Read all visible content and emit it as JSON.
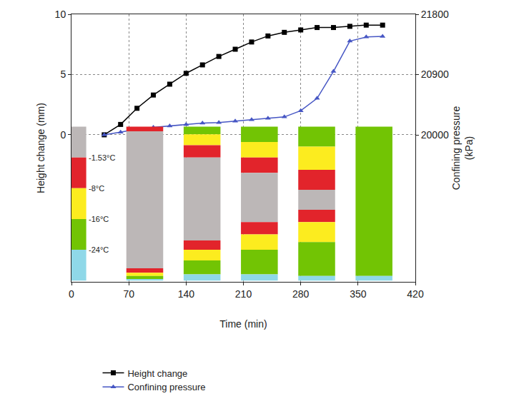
{
  "chart_data": {
    "type": "line",
    "x_label": "Time (min)",
    "y_label": "Height change (mm)",
    "y2_label": "Confining pressure (kPa)",
    "xlim": [
      0,
      420
    ],
    "xticks": [
      0,
      70,
      140,
      210,
      280,
      350,
      420
    ],
    "ylim": [
      -12.2,
      10
    ],
    "yticks": [
      0,
      5,
      10
    ],
    "y2lim": [
      17806,
      21800
    ],
    "y2ticks": [
      20000,
      20900,
      21800
    ],
    "grid": true,
    "legend": "bottom left",
    "series": [
      {
        "name": "Height change",
        "color": "#000000",
        "marker": "square",
        "line_style": "solid",
        "x": [
          40,
          60,
          80,
          100,
          120,
          140,
          160,
          180,
          200,
          220,
          240,
          260,
          280,
          300,
          320,
          340,
          360,
          380
        ],
        "values": [
          0,
          0.86,
          2.2,
          3.3,
          4.2,
          5.1,
          5.8,
          6.5,
          7.1,
          7.7,
          8.2,
          8.5,
          8.7,
          8.9,
          8.9,
          9.0,
          9.1,
          9.1
        ]
      },
      {
        "name": "Confining pressure",
        "color": "#4656c4",
        "marker": "triangle-up",
        "line_style": "solid",
        "axis": "y2",
        "x": [
          40,
          60,
          80,
          100,
          120,
          140,
          160,
          180,
          200,
          220,
          240,
          260,
          280,
          300,
          320,
          340,
          360,
          380
        ],
        "values": [
          20000,
          20041,
          20082,
          20113,
          20134,
          20154,
          20175,
          20185,
          20206,
          20226,
          20247,
          20268,
          20360,
          20545,
          20947,
          21400,
          21461,
          21471
        ]
      }
    ],
    "temperature_scale": {
      "labels": [
        "-1.53°C",
        "-8°C",
        "-16°C",
        "-24°C"
      ],
      "colors": [
        "#bcb7b7",
        "#e2242b",
        "#fcec1f",
        "#72c404",
        "#8fd8e8"
      ]
    },
    "temperature_profiles": [
      {
        "time": 70,
        "layers": [
          {
            "band": 1,
            "top": 0,
            "bottom": 0.03
          },
          {
            "band": 0,
            "top": 0.03,
            "bottom": 0.92
          },
          {
            "band": 1,
            "top": 0.92,
            "bottom": 0.95
          },
          {
            "band": 2,
            "top": 0.95,
            "bottom": 0.97
          },
          {
            "band": 3,
            "top": 0.97,
            "bottom": 0.99
          },
          {
            "band": 4,
            "top": 0.99,
            "bottom": 1
          }
        ]
      },
      {
        "time": 140,
        "layers": [
          {
            "band": 3,
            "top": 0,
            "bottom": 0.05
          },
          {
            "band": 2,
            "top": 0.05,
            "bottom": 0.12
          },
          {
            "band": 1,
            "top": 0.12,
            "bottom": 0.2
          },
          {
            "band": 0,
            "top": 0.2,
            "bottom": 0.74
          },
          {
            "band": 1,
            "top": 0.74,
            "bottom": 0.8
          },
          {
            "band": 2,
            "top": 0.8,
            "bottom": 0.87
          },
          {
            "band": 3,
            "top": 0.87,
            "bottom": 0.96
          },
          {
            "band": 4,
            "top": 0.96,
            "bottom": 1
          }
        ]
      },
      {
        "time": 210,
        "layers": [
          {
            "band": 3,
            "top": 0,
            "bottom": 0.1
          },
          {
            "band": 2,
            "top": 0.1,
            "bottom": 0.2
          },
          {
            "band": 1,
            "top": 0.2,
            "bottom": 0.3
          },
          {
            "band": 0,
            "top": 0.3,
            "bottom": 0.62
          },
          {
            "band": 1,
            "top": 0.62,
            "bottom": 0.7
          },
          {
            "band": 2,
            "top": 0.7,
            "bottom": 0.8
          },
          {
            "band": 3,
            "top": 0.8,
            "bottom": 0.96
          },
          {
            "band": 4,
            "top": 0.96,
            "bottom": 1
          }
        ]
      },
      {
        "time": 280,
        "layers": [
          {
            "band": 3,
            "top": 0,
            "bottom": 0.13
          },
          {
            "band": 2,
            "top": 0.13,
            "bottom": 0.28
          },
          {
            "band": 1,
            "top": 0.28,
            "bottom": 0.41
          },
          {
            "band": 0,
            "top": 0.41,
            "bottom": 0.54
          },
          {
            "band": 1,
            "top": 0.54,
            "bottom": 0.62
          },
          {
            "band": 2,
            "top": 0.62,
            "bottom": 0.75
          },
          {
            "band": 3,
            "top": 0.75,
            "bottom": 0.97
          },
          {
            "band": 4,
            "top": 0.97,
            "bottom": 1
          }
        ]
      },
      {
        "time": 350,
        "layers": [
          {
            "band": 3,
            "top": 0,
            "bottom": 0.97
          },
          {
            "band": 4,
            "top": 0.97,
            "bottom": 1
          }
        ]
      }
    ]
  }
}
